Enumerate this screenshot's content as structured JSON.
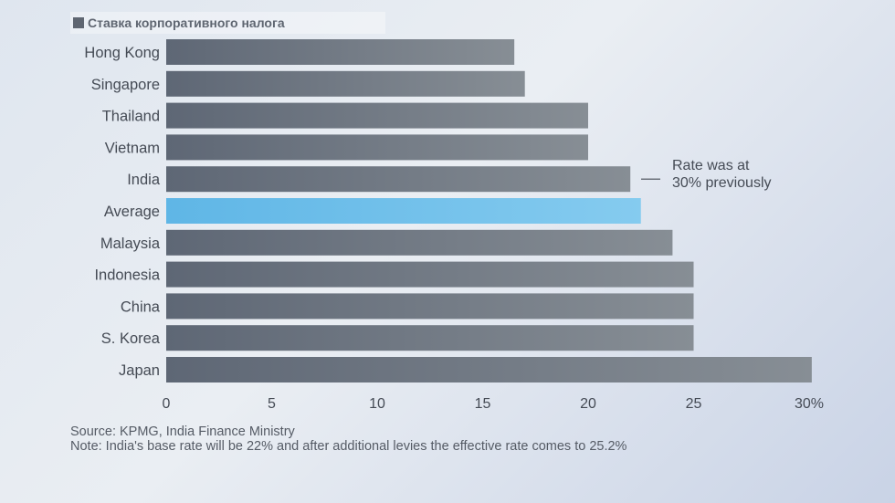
{
  "chart_data": {
    "type": "bar",
    "orientation": "horizontal",
    "legend": "Ставка корпоративного налога",
    "categories": [
      "Hong Kong",
      "Singapore",
      "Thailand",
      "Vietnam",
      "India",
      "Average",
      "Malaysia",
      "Indonesia",
      "China",
      "S. Korea",
      "Japan"
    ],
    "values": [
      16.5,
      17,
      20,
      20,
      22,
      22.5,
      24,
      25,
      25,
      25,
      30.6
    ],
    "highlight_category": "Average",
    "x_ticks": [
      "0",
      "5",
      "10",
      "15",
      "20",
      "25",
      "30%"
    ],
    "xlim": [
      0,
      30
    ],
    "grid": false,
    "annotation": {
      "category": "India",
      "lines": [
        "Rate was at",
        "30% previously"
      ]
    },
    "colors": {
      "bar_start": "#5e6775",
      "bar_end": "#878e95",
      "highlight_start": "#5fb6e6",
      "highlight_end": "#85cbef",
      "text": "#454b55"
    }
  },
  "source_line": "Source: KPMG, India Finance Ministry",
  "note_line": "Note: India's base rate will be 22% and after additional levies the effective rate comes to 25.2%"
}
